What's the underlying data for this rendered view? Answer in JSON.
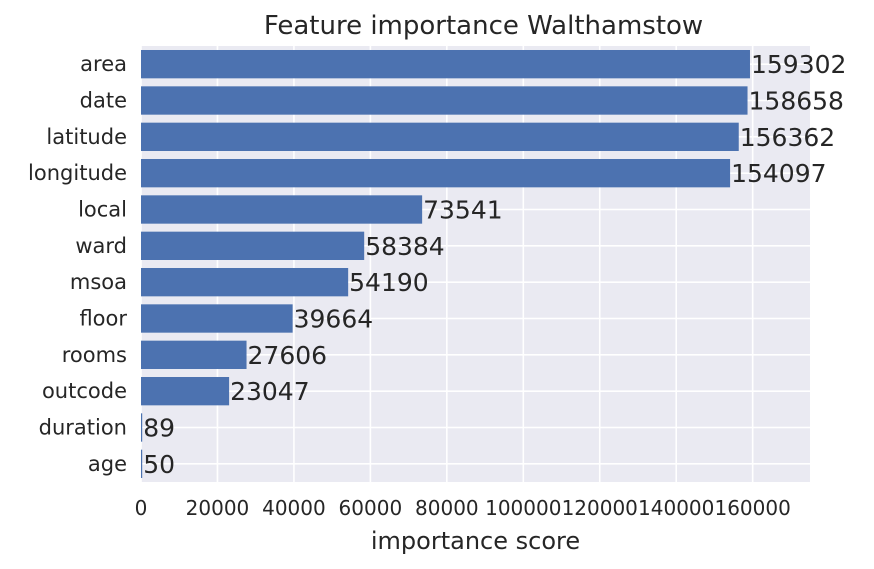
{
  "chart_data": {
    "type": "bar",
    "orientation": "horizontal",
    "title": "Feature importance Walthamstow",
    "xlabel": "importance score",
    "ylabel": "",
    "categories": [
      "area",
      "date",
      "latitude",
      "longitude",
      "local",
      "ward",
      "msoa",
      "floor",
      "rooms",
      "outcode",
      "duration",
      "age"
    ],
    "values": [
      159302,
      158658,
      156362,
      154097,
      73541,
      58384,
      54190,
      39664,
      27606,
      23047,
      89,
      50
    ],
    "xticks": [
      "0",
      "20000",
      "40000",
      "60000",
      "80000",
      "100000",
      "120000",
      "140000",
      "160000"
    ],
    "xlim": [
      0,
      175000
    ],
    "grid": true,
    "bar_color": "#4c72b0",
    "background_color": "#eaeaf2"
  }
}
